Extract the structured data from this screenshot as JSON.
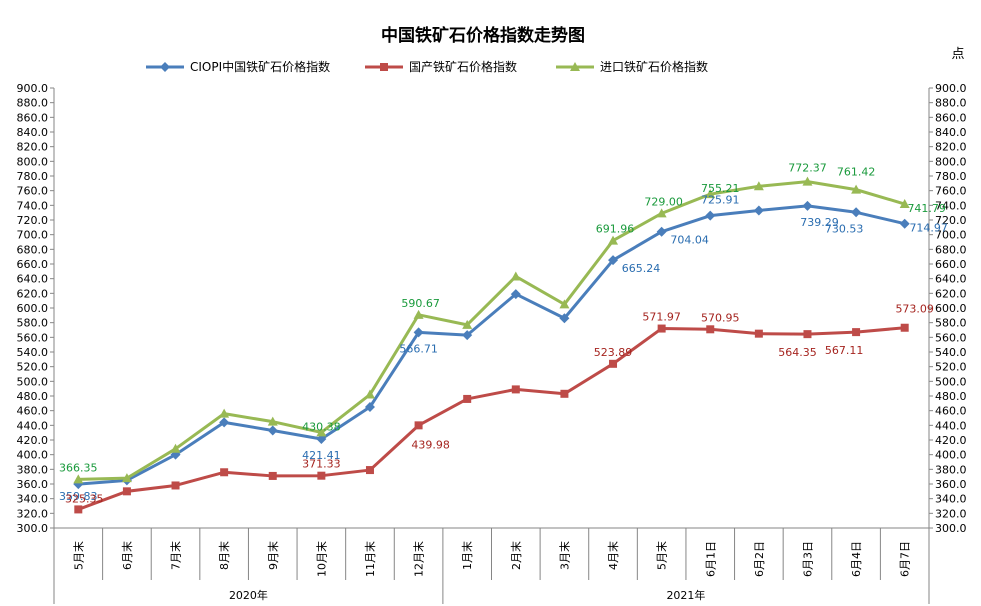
{
  "chart_data": {
    "type": "line",
    "title": "中国铁矿石价格指数走势图",
    "unit": "点",
    "ylim": [
      300,
      900
    ],
    "ytick_step": 20,
    "ytick_labels": [
      "300.0",
      "320.0",
      "340.0",
      "360.0",
      "380.0",
      "400.0",
      "420.0",
      "440.0",
      "460.0",
      "480.0",
      "500.0",
      "520.0",
      "540.0",
      "560.0",
      "580.0",
      "600.0",
      "620.0",
      "640.0",
      "660.0",
      "680.0",
      "700.0",
      "720.0",
      "740.0",
      "760.0",
      "780.0",
      "800.0",
      "820.0",
      "840.0",
      "860.0",
      "880.0",
      "900.0"
    ],
    "categories": [
      "5月末",
      "6月末",
      "7月末",
      "8月末",
      "9月末",
      "10月末",
      "11月末",
      "12月末",
      "1月末",
      "2月末",
      "3月末",
      "4月末",
      "5月末",
      "6月1日",
      "6月2日",
      "6月3日",
      "6月4日",
      "6月7日"
    ],
    "year_groups": [
      {
        "label": "2020年",
        "span": 8
      },
      {
        "label": "2021年",
        "span": 10
      }
    ],
    "legend_position": "top",
    "grid": false,
    "series": [
      {
        "name": "CIOPI中国铁矿石价格指数",
        "color": "#4a7ebb",
        "marker": "diamond",
        "values": [
          359.83,
          365,
          400,
          444,
          433,
          421.41,
          465,
          566.71,
          563,
          619,
          586,
          665.24,
          704.04,
          725.91,
          733,
          739.29,
          730.53,
          714.97
        ],
        "labels": [
          "359.83",
          "",
          "",
          "",
          "",
          "421.41",
          "",
          "566.71",
          "",
          "",
          "",
          "665.24",
          "704.04",
          "725.91",
          "",
          "739.29",
          "730.53",
          "714.97"
        ]
      },
      {
        "name": "国产铁矿石价格指数",
        "color": "#be4b48",
        "marker": "square",
        "values": [
          325.35,
          350,
          358,
          376,
          371,
          371.33,
          379,
          439.98,
          476,
          489,
          483,
          523.89,
          571.97,
          570.95,
          565,
          564.35,
          567.11,
          573.09
        ],
        "labels": [
          "325.35",
          "",
          "",
          "",
          "",
          "371.33",
          "",
          "439.98",
          "",
          "",
          "",
          "523.89",
          "571.97",
          "570.95",
          "",
          "564.35",
          "567.11",
          "573.09"
        ]
      },
      {
        "name": "进口铁矿石价格指数",
        "color": "#98b954",
        "marker": "triangle",
        "values": [
          366.35,
          368,
          408,
          456,
          445,
          430.38,
          482,
          590.67,
          577,
          643,
          605,
          691.96,
          729.0,
          755.21,
          766,
          772.37,
          761.42,
          741.79
        ],
        "labels": [
          "366.35",
          "",
          "",
          "",
          "",
          "430.38",
          "",
          "590.67",
          "",
          "",
          "",
          "691.96",
          "729.00",
          "755.21",
          "",
          "772.37",
          "761.42",
          "741.79"
        ]
      }
    ],
    "label_colors": [
      "#2a6db0",
      "#a5241f",
      "#1a9a3c"
    ]
  }
}
